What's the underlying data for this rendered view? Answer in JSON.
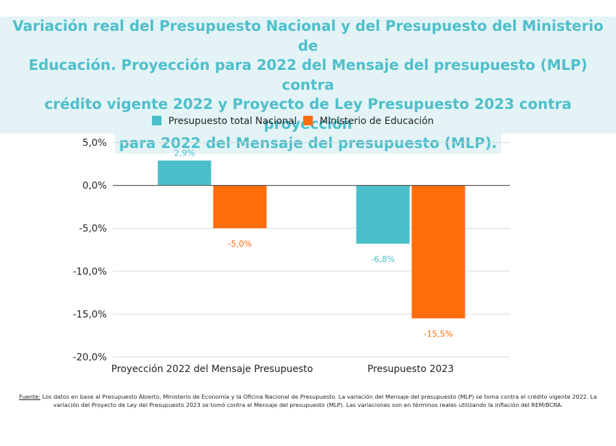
{
  "title_lines": [
    "Variación real del Presupuesto Nacional y del Presupuesto del Ministerio de",
    "Educación. Proyección para 2022 del Mensaje del presupuesto (MLP) contra",
    "crédito vigente 2022 y Proyecto de Ley Presupuesto 2023 contra proyección",
    "para 2022 del Mensaje del presupuesto (MLP)."
  ],
  "chart_data": {
    "type": "bar",
    "categories": [
      "Proyección 2022 del Mensaje Presupuesto",
      "Presupuesto 2023"
    ],
    "series": [
      {
        "name": "Presupuesto total Nacional",
        "color": "#4bbfc9",
        "values": [
          2.9,
          -6.8
        ],
        "labels": [
          "2,9%",
          "-6,8%"
        ]
      },
      {
        "name": "Ministerio de Educación",
        "color": "#ff6d0d",
        "values": [
          -5.0,
          -15.5
        ],
        "labels": [
          "-5,0%",
          "-15,5%"
        ]
      }
    ],
    "ylim": [
      -20,
      5
    ],
    "yticks": [
      5,
      0,
      -5,
      -10,
      -15,
      -20
    ],
    "ytick_labels": [
      "5,0%",
      "0,0%",
      "-5,0%",
      "-10,0%",
      "-15,0%",
      "-20,0%"
    ],
    "grid": true,
    "legend_position": "top"
  },
  "source": {
    "label": "Fuente:",
    "text": " Los datos en base al Presupuesto Abierto, Ministerio de Economía y la Oficina Nacional de Presupuesto. La variación del Mensaje del presupuesto (MLP) se toma contra el crédito vigente 2022. La variación del Proyecto de Ley del Presupuesto 2023 se tomó contra el Mensaje del presupuesto (MLP). Las variaciones son en términos reales utilizando la inflación del REM/BCRA."
  }
}
